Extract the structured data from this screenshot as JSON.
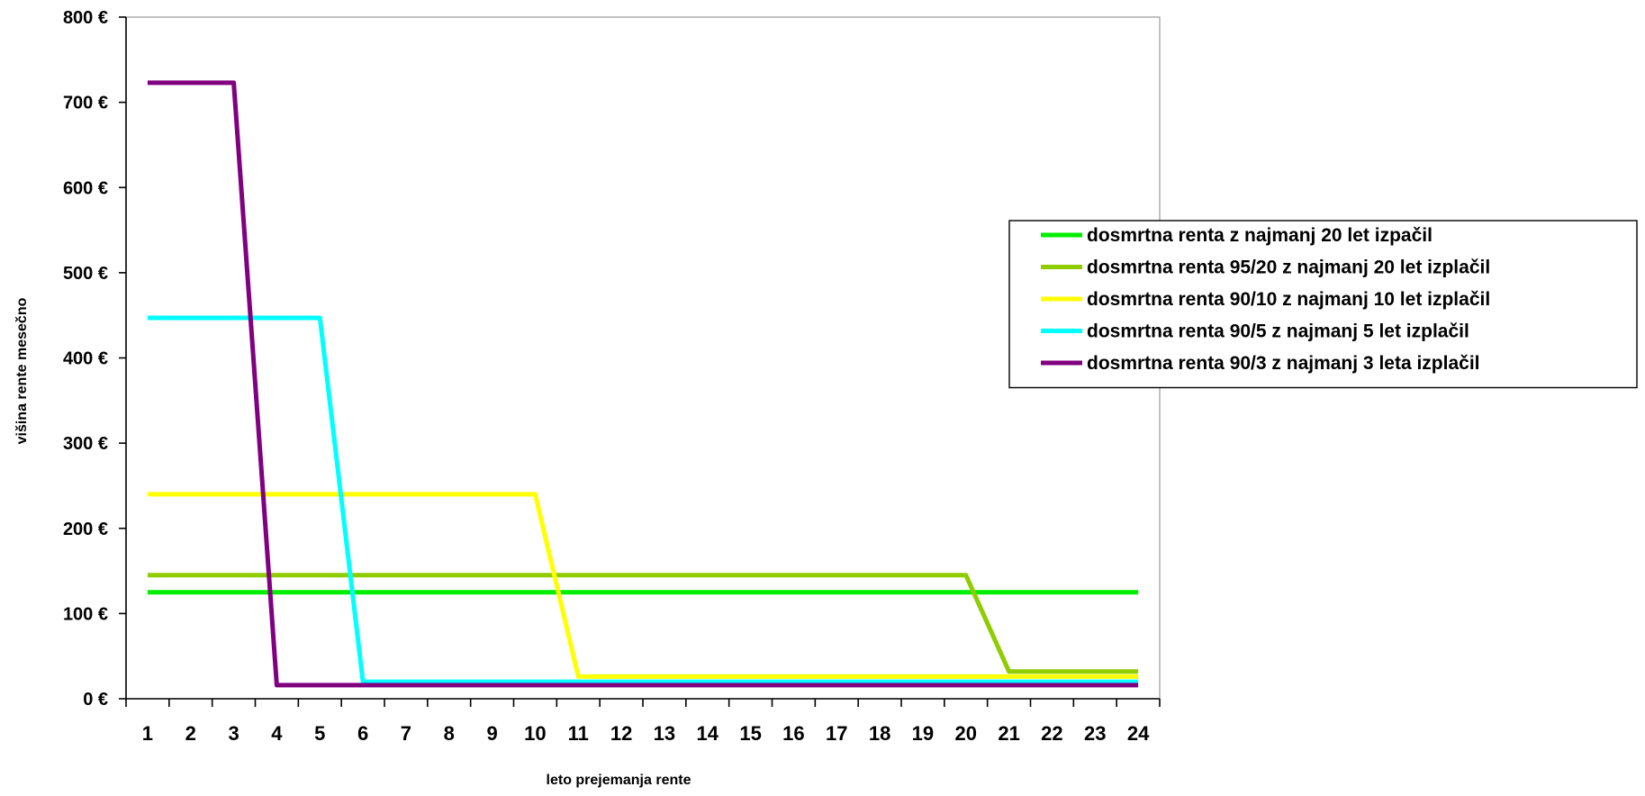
{
  "chart_data": {
    "type": "line",
    "title": "",
    "xlabel": "leto prejemanja rente",
    "ylabel": "višina rente mesečno",
    "categories": [
      "1",
      "2",
      "3",
      "4",
      "5",
      "6",
      "7",
      "8",
      "9",
      "10",
      "11",
      "12",
      "13",
      "14",
      "15",
      "16",
      "17",
      "18",
      "19",
      "20",
      "21",
      "22",
      "23",
      "24"
    ],
    "ylim": [
      0,
      800
    ],
    "yticks": [
      0,
      100,
      200,
      300,
      400,
      500,
      600,
      700,
      800
    ],
    "ytick_labels": [
      "0 €",
      "100 €",
      "200 €",
      "300 €",
      "400 €",
      "500 €",
      "600 €",
      "700 €",
      "800 €"
    ],
    "grid": false,
    "legend_position": "right",
    "series": [
      {
        "name": "dosmrtna renta z najmanj 20 let izpačil",
        "color": "#00ee00",
        "values": [
          125,
          125,
          125,
          125,
          125,
          125,
          125,
          125,
          125,
          125,
          125,
          125,
          125,
          125,
          125,
          125,
          125,
          125,
          125,
          125,
          125,
          125,
          125,
          125
        ]
      },
      {
        "name": "dosmrtna renta 95/20 z najmanj 20 let izplačil",
        "color": "#8fcc00",
        "values": [
          145,
          145,
          145,
          145,
          145,
          145,
          145,
          145,
          145,
          145,
          145,
          145,
          145,
          145,
          145,
          145,
          145,
          145,
          145,
          145,
          32,
          32,
          32,
          32
        ]
      },
      {
        "name": "dosmrtna renta 90/10 z najmanj 10 let izplačil",
        "color": "#ffff00",
        "values": [
          240,
          240,
          240,
          240,
          240,
          240,
          240,
          240,
          240,
          240,
          26,
          26,
          26,
          26,
          26,
          26,
          26,
          26,
          26,
          26,
          26,
          26,
          26,
          26
        ]
      },
      {
        "name": "dosmrtna renta 90/5 z najmanj 5 let izplačil",
        "color": "#00ffff",
        "values": [
          447,
          447,
          447,
          447,
          447,
          20,
          20,
          20,
          20,
          20,
          20,
          20,
          20,
          20,
          20,
          20,
          20,
          20,
          20,
          20,
          20,
          20,
          20,
          20
        ]
      },
      {
        "name": "dosmrtna renta 90/3 z najmanj 3 leta izplačil",
        "color": "#800080",
        "values": [
          723,
          723,
          723,
          16,
          16,
          16,
          16,
          16,
          16,
          16,
          16,
          16,
          16,
          16,
          16,
          16,
          16,
          16,
          16,
          16,
          16,
          16,
          16,
          16
        ]
      }
    ]
  }
}
